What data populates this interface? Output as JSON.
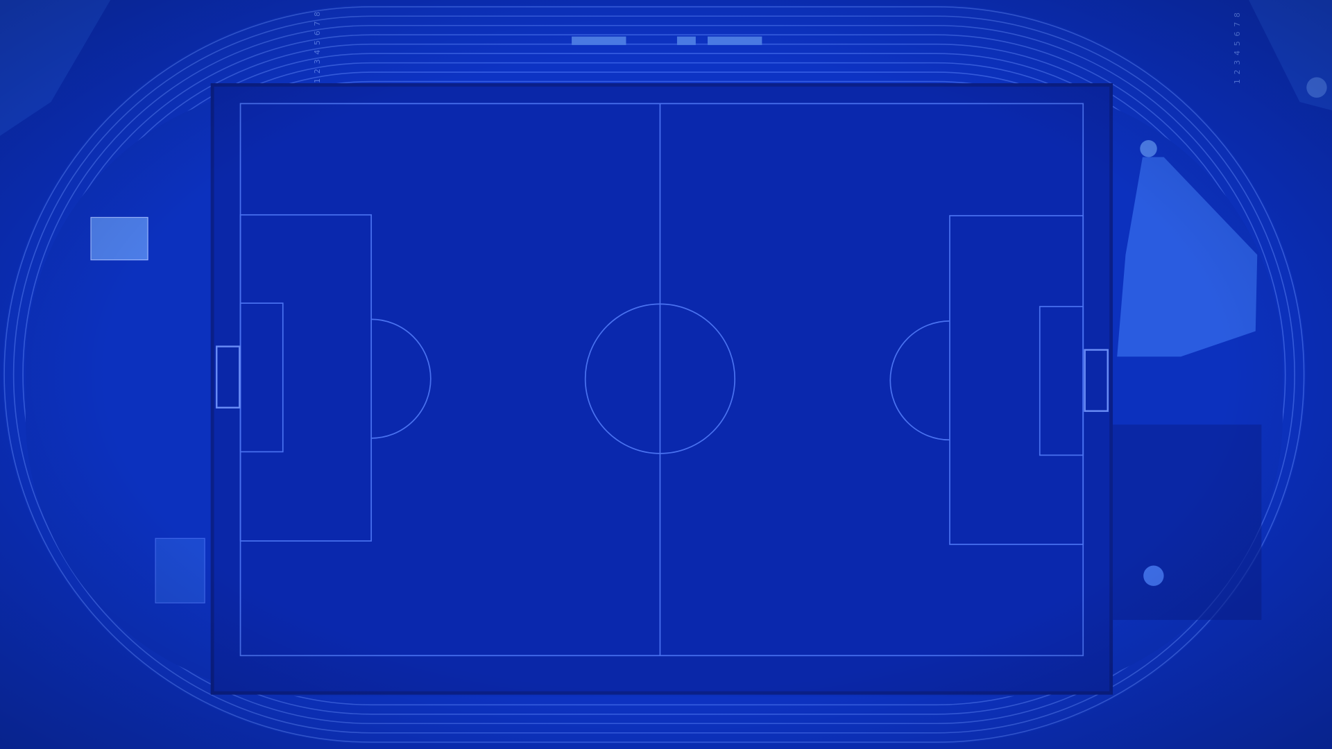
{
  "track": {
    "lane_numbers": [
      "1",
      "2",
      "3",
      "4",
      "5",
      "6",
      "7",
      "8"
    ]
  }
}
